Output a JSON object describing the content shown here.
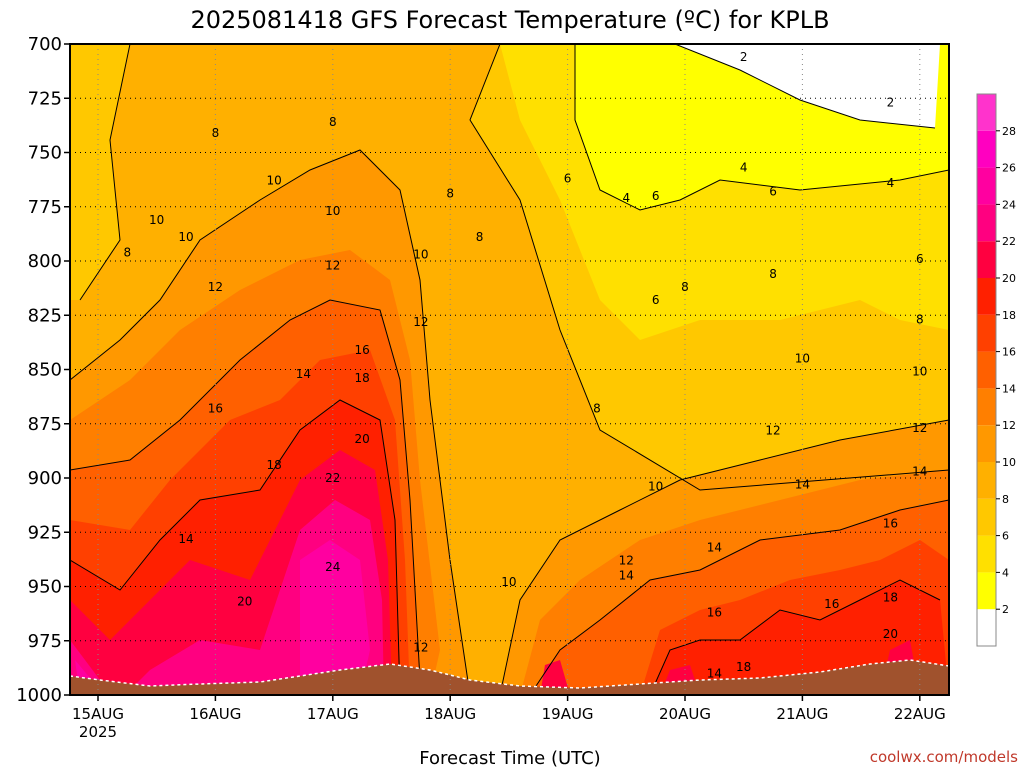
{
  "chart_data": {
    "type": "heatmap",
    "title": "2025081418 GFS Forecast Temperature (ºC) for KPLB",
    "xlabel": "Forecast Time (UTC)",
    "ylabel": "",
    "credit": "coolwx.com/models",
    "y_axis": {
      "ticks": [
        700,
        725,
        750,
        775,
        800,
        825,
        850,
        875,
        900,
        925,
        950,
        975,
        1000
      ],
      "range": [
        700,
        1000
      ],
      "inverted": true
    },
    "x_axis": {
      "ticks": [
        "15AUG",
        "16AUG",
        "17AUG",
        "18AUG",
        "19AUG",
        "20AUG",
        "21AUG",
        "22AUG"
      ],
      "sub_label": "2025"
    },
    "colorbar": {
      "levels": [
        2,
        4,
        6,
        8,
        10,
        12,
        14,
        16,
        18,
        20,
        22,
        24,
        26,
        28
      ],
      "colors": [
        "#ffffff",
        "#ffff00",
        "#ffe000",
        "#ffc800",
        "#ffb000",
        "#ff9800",
        "#ff7f00",
        "#ff6000",
        "#ff4000",
        "#ff2000",
        "#ff0040",
        "#ff0080",
        "#ff00a0",
        "#ff00c0",
        "#ff33cc"
      ]
    },
    "contour_labels": [
      {
        "time": "15AUG 06",
        "p": 796,
        "v": 8
      },
      {
        "time": "15AUG 12",
        "p": 781,
        "v": 10
      },
      {
        "time": "15AUG 18",
        "p": 789,
        "v": 10
      },
      {
        "time": "16AUG 00",
        "p": 812,
        "v": 12
      },
      {
        "time": "16AUG 00",
        "p": 741,
        "v": 8
      },
      {
        "time": "16AUG 00",
        "p": 868,
        "v": 16
      },
      {
        "time": "15AUG 18",
        "p": 928,
        "v": 14
      },
      {
        "time": "16AUG 06",
        "p": 957,
        "v": 20
      },
      {
        "time": "16AUG 12",
        "p": 894,
        "v": 18
      },
      {
        "time": "16AUG 12",
        "p": 763,
        "v": 10
      },
      {
        "time": "16AUG 18",
        "p": 852,
        "v": 14
      },
      {
        "time": "17AUG 00",
        "p": 736,
        "v": 8
      },
      {
        "time": "17AUG 00",
        "p": 777,
        "v": 10
      },
      {
        "time": "17AUG 00",
        "p": 802,
        "v": 12
      },
      {
        "time": "17AUG 06",
        "p": 841,
        "v": 16
      },
      {
        "time": "17AUG 06",
        "p": 854,
        "v": 18
      },
      {
        "time": "17AUG 06",
        "p": 882,
        "v": 20
      },
      {
        "time": "17AUG 00",
        "p": 900,
        "v": 22
      },
      {
        "time": "17AUG 00",
        "p": 941,
        "v": 24
      },
      {
        "time": "17AUG 18",
        "p": 828,
        "v": 12
      },
      {
        "time": "17AUG 18",
        "p": 797,
        "v": 10
      },
      {
        "time": "18AUG 00",
        "p": 769,
        "v": 8
      },
      {
        "time": "18AUG 06",
        "p": 789,
        "v": 8
      },
      {
        "time": "17AUG 18",
        "p": 978,
        "v": 12
      },
      {
        "time": "18AUG 12",
        "p": 948,
        "v": 10
      },
      {
        "time": "19AUG 00",
        "p": 762,
        "v": 6
      },
      {
        "time": "19AUG 06",
        "p": 868,
        "v": 8
      },
      {
        "time": "19AUG 12",
        "p": 945,
        "v": 14
      },
      {
        "time": "19AUG 12",
        "p": 771,
        "v": 4
      },
      {
        "time": "19AUG 18",
        "p": 770,
        "v": 6
      },
      {
        "time": "19AUG 18",
        "p": 818,
        "v": 6
      },
      {
        "time": "19AUG 18",
        "p": 904,
        "v": 10
      },
      {
        "time": "19AUG 12",
        "p": 938,
        "v": 12
      },
      {
        "time": "20AUG 00",
        "p": 812,
        "v": 8
      },
      {
        "time": "20AUG 06",
        "p": 932,
        "v": 14
      },
      {
        "time": "20AUG 06",
        "p": 962,
        "v": 16
      },
      {
        "time": "20AUG 06",
        "p": 990,
        "v": 14
      },
      {
        "time": "20AUG 12",
        "p": 987,
        "v": 18
      },
      {
        "time": "20AUG 12",
        "p": 706,
        "v": 2
      },
      {
        "time": "20AUG 12",
        "p": 757,
        "v": 4
      },
      {
        "time": "20AUG 18",
        "p": 768,
        "v": 6
      },
      {
        "time": "20AUG 18",
        "p": 806,
        "v": 8
      },
      {
        "time": "20AUG 18",
        "p": 878,
        "v": 12
      },
      {
        "time": "21AUG 00",
        "p": 903,
        "v": 14
      },
      {
        "time": "21AUG 00",
        "p": 845,
        "v": 10
      },
      {
        "time": "21AUG 06",
        "p": 958,
        "v": 16
      },
      {
        "time": "21AUG 18",
        "p": 727,
        "v": 2
      },
      {
        "time": "21AUG 18",
        "p": 764,
        "v": 4
      },
      {
        "time": "21AUG 18",
        "p": 955,
        "v": 18
      },
      {
        "time": "21AUG 18",
        "p": 972,
        "v": 20
      },
      {
        "time": "21AUG 18",
        "p": 921,
        "v": 16
      },
      {
        "time": "22AUG 00",
        "p": 799,
        "v": 6
      },
      {
        "time": "22AUG 00",
        "p": 827,
        "v": 8
      },
      {
        "time": "22AUG 00",
        "p": 851,
        "v": 10
      },
      {
        "time": "22AUG 00",
        "p": 877,
        "v": 12
      },
      {
        "time": "22AUG 00",
        "p": 897,
        "v": 14
      }
    ]
  }
}
